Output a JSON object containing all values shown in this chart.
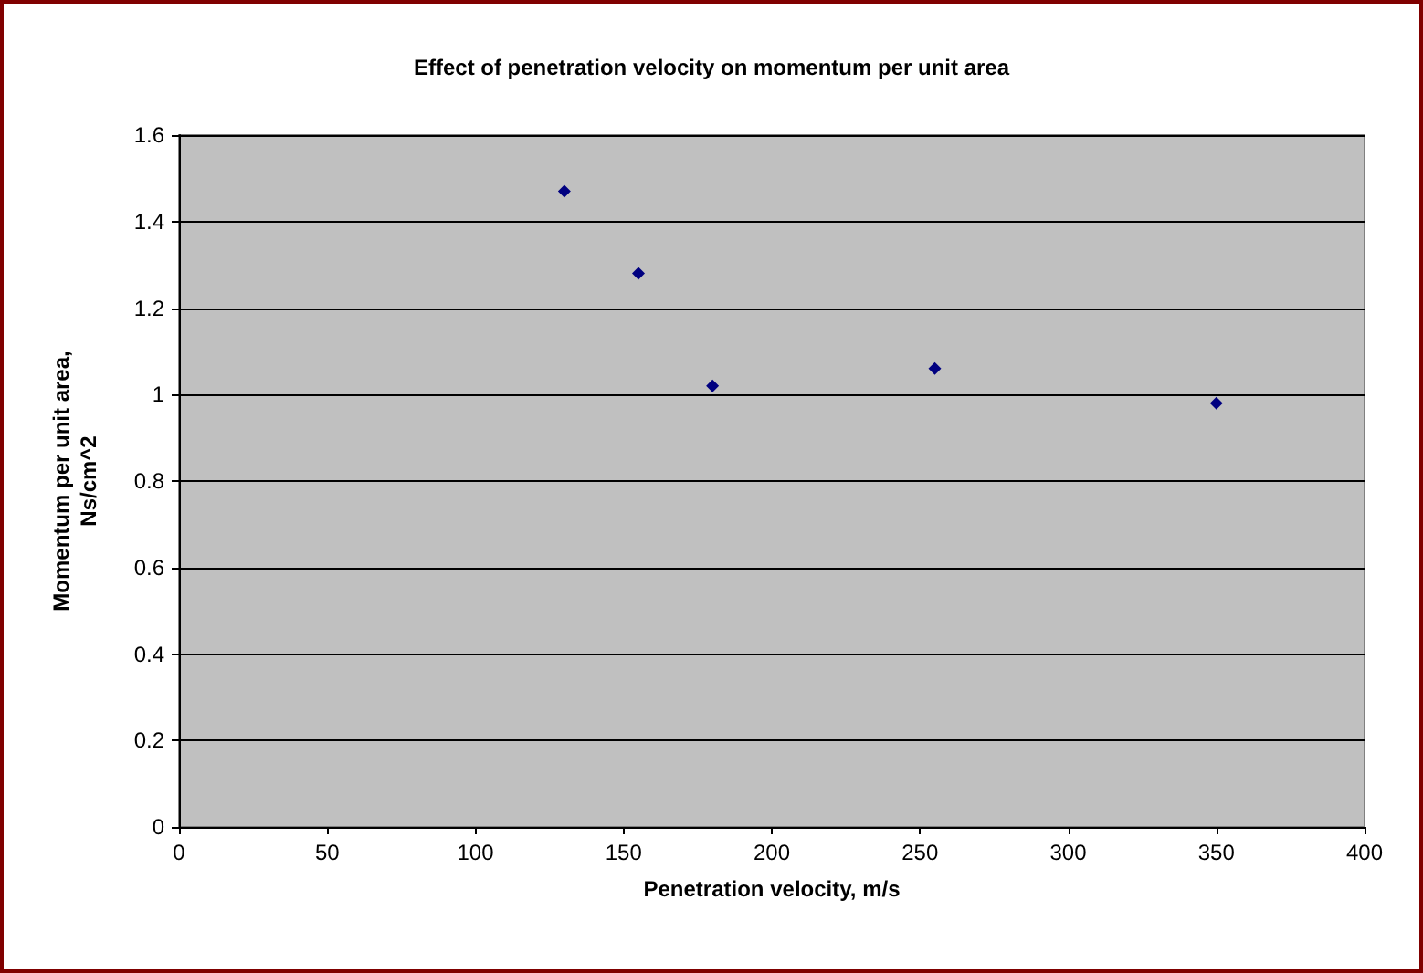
{
  "chart_data": {
    "type": "scatter",
    "title": "Effect of penetration velocity on momentum per unit area",
    "xlabel": "Penetration velocity, m/s",
    "ylabel": "Momentum per unit area,\nNs/cm^2",
    "x": [
      130,
      155,
      180,
      255,
      350
    ],
    "series": [
      {
        "color": "#000080",
        "values": [
          1.47,
          1.28,
          1.02,
          1.06,
          0.98
        ]
      }
    ],
    "xlim": [
      0,
      400
    ],
    "xticks": [
      0,
      50,
      100,
      150,
      200,
      250,
      300,
      350,
      400
    ],
    "ylim": [
      0,
      1.6
    ],
    "yticks": [
      0,
      0.2,
      0.4,
      0.6,
      0.8,
      1,
      1.2,
      1.4,
      1.6
    ],
    "grid": "y",
    "marker": "diamond"
  }
}
